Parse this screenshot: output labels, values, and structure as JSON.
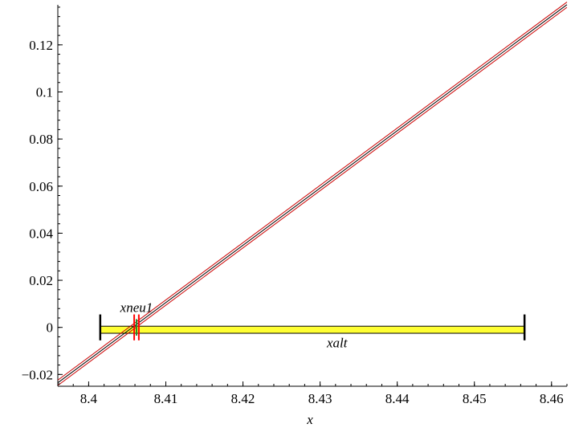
{
  "chart_data": {
    "type": "line",
    "title": "",
    "xlabel": "x",
    "ylabel": "",
    "xlim": [
      8.396,
      8.462
    ],
    "ylim": [
      -0.025,
      0.137
    ],
    "x_ticks": [
      8.4,
      8.41,
      8.42,
      8.43,
      8.44,
      8.45,
      8.46
    ],
    "x_tick_labels": [
      "8.4",
      "8.41",
      "8.42",
      "8.43",
      "8.44",
      "8.45",
      "8.46"
    ],
    "y_ticks": [
      -0.02,
      0,
      0.02,
      0.04,
      0.06,
      0.08,
      0.1,
      0.12
    ],
    "y_tick_labels": [
      "−0.02",
      "0",
      "0.02",
      "0.04",
      "0.06",
      "0.08",
      "0.1",
      "0.12"
    ],
    "grid": false,
    "legend": "none",
    "series": [
      {
        "values": [
          {
            "x": 8.396,
            "y": -0.02353
          },
          {
            "x": 8.462,
            "y": 0.13706
          }
        ],
        "color": "#000000"
      },
      {
        "values": [
          {
            "x": 8.396,
            "y": -0.02241
          },
          {
            "x": 8.462,
            "y": 0.13818
          }
        ],
        "color": "#cc0000"
      },
      {
        "values": [
          {
            "x": 8.396,
            "y": -0.02465
          },
          {
            "x": 8.462,
            "y": 0.13594
          }
        ],
        "color": "#cc0000"
      }
    ],
    "interval": {
      "from": 8.4015,
      "to": 8.4565,
      "y_bottom": -0.0025,
      "y_top": 0.0005,
      "fill": "#ffff33",
      "endpoint_tick_range": [
        -0.0055,
        0.0055
      ]
    },
    "red_markers": [
      {
        "x": 8.4059,
        "y_range": [
          -0.0055,
          0.0055
        ],
        "color": "#ff0000"
      },
      {
        "x": 8.4065,
        "y_range": [
          -0.0055,
          0.0055
        ],
        "color": "#ff0000"
      }
    ],
    "green_marker": {
      "x": 8.4062,
      "y_range": [
        -0.0035,
        0.0035
      ],
      "color": "#2a8a2a"
    },
    "annotations": [
      {
        "text": "xneu1",
        "x": 8.4062,
        "y": 0.0065
      },
      {
        "text": "xalt",
        "x": 8.4322,
        "y": -0.0085
      }
    ]
  }
}
